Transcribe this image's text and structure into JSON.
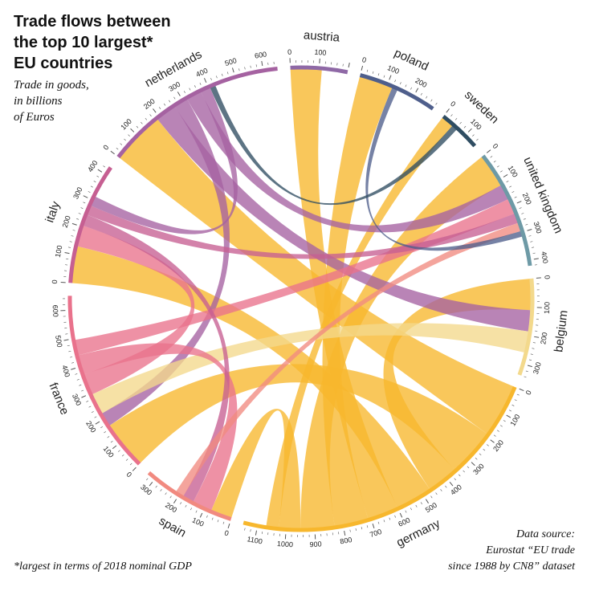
{
  "title_lines": [
    "Trade flows between",
    "the top 10 largest*",
    "EU countries"
  ],
  "subtitle_lines": [
    "Trade in goods,",
    "in billions",
    "of Euros"
  ],
  "footnote": "*largest in terms of 2018 nominal GDP",
  "source_lines": [
    "Data source:",
    "Eurostat “EU trade",
    "since 1988 by CN8” dataset"
  ],
  "chart_data": {
    "type": "chord",
    "unit": "billions of Euros",
    "countries": [
      {
        "name": "belgium",
        "total": 340,
        "ticks": [
          0,
          100,
          200,
          300
        ],
        "color": "#f3d98c"
      },
      {
        "name": "germany",
        "total": 1150,
        "ticks": [
          0,
          100,
          200,
          300,
          400,
          500,
          600,
          700,
          800,
          900,
          1000,
          1100
        ],
        "color": "#f7b72d"
      },
      {
        "name": "spain",
        "total": 330,
        "ticks": [
          0,
          100,
          200,
          300
        ],
        "color": "#f18a80"
      },
      {
        "name": "france",
        "total": 650,
        "ticks": [
          0,
          100,
          200,
          300,
          400,
          500,
          600
        ],
        "color": "#e9728c"
      },
      {
        "name": "italy",
        "total": 430,
        "ticks": [
          0,
          100,
          200,
          300,
          400
        ],
        "color": "#c65f92"
      },
      {
        "name": "netherlands",
        "total": 650,
        "ticks": [
          0,
          100,
          200,
          300,
          400,
          500,
          600
        ],
        "color": "#a562a1"
      },
      {
        "name": "austria",
        "total": 200,
        "ticks": [
          0,
          100
        ],
        "color": "#8f69a6"
      },
      {
        "name": "poland",
        "total": 280,
        "ticks": [
          0,
          100,
          200
        ],
        "color": "#4f5f8c"
      },
      {
        "name": "sweden",
        "total": 150,
        "ticks": [
          0,
          100
        ],
        "color": "#2f4d62"
      },
      {
        "name": "united kingdom",
        "total": 420,
        "ticks": [
          0,
          100,
          200,
          300,
          400
        ],
        "color": "#6e9aa6"
      }
    ],
    "flows": [
      {
        "from": "germany",
        "to": "netherlands",
        "value": 190
      },
      {
        "from": "germany",
        "to": "france",
        "value": 170
      },
      {
        "from": "germany",
        "to": "belgium",
        "value": 110
      },
      {
        "from": "germany",
        "to": "italy",
        "value": 130
      },
      {
        "from": "germany",
        "to": "austria",
        "value": 110
      },
      {
        "from": "germany",
        "to": "poland",
        "value": 120
      },
      {
        "from": "germany",
        "to": "united kingdom",
        "value": 120
      },
      {
        "from": "germany",
        "to": "spain",
        "value": 75
      },
      {
        "from": "germany",
        "to": "sweden",
        "value": 45
      },
      {
        "from": "netherlands",
        "to": "belgium",
        "value": 75
      },
      {
        "from": "netherlands",
        "to": "france",
        "value": 50
      },
      {
        "from": "netherlands",
        "to": "united kingdom",
        "value": 55
      },
      {
        "from": "belgium",
        "to": "france",
        "value": 75
      },
      {
        "from": "france",
        "to": "italy",
        "value": 75
      },
      {
        "from": "france",
        "to": "spain",
        "value": 70
      },
      {
        "from": "france",
        "to": "united kingdom",
        "value": 55
      },
      {
        "from": "italy",
        "to": "spain",
        "value": 40
      },
      {
        "from": "italy",
        "to": "united kingdom",
        "value": 35
      },
      {
        "from": "spain",
        "to": "united kingdom",
        "value": 30
      },
      {
        "from": "netherlands",
        "to": "italy",
        "value": 35
      },
      {
        "from": "poland",
        "to": "united kingdom",
        "value": 20
      },
      {
        "from": "sweden",
        "to": "netherlands",
        "value": 20
      }
    ]
  }
}
